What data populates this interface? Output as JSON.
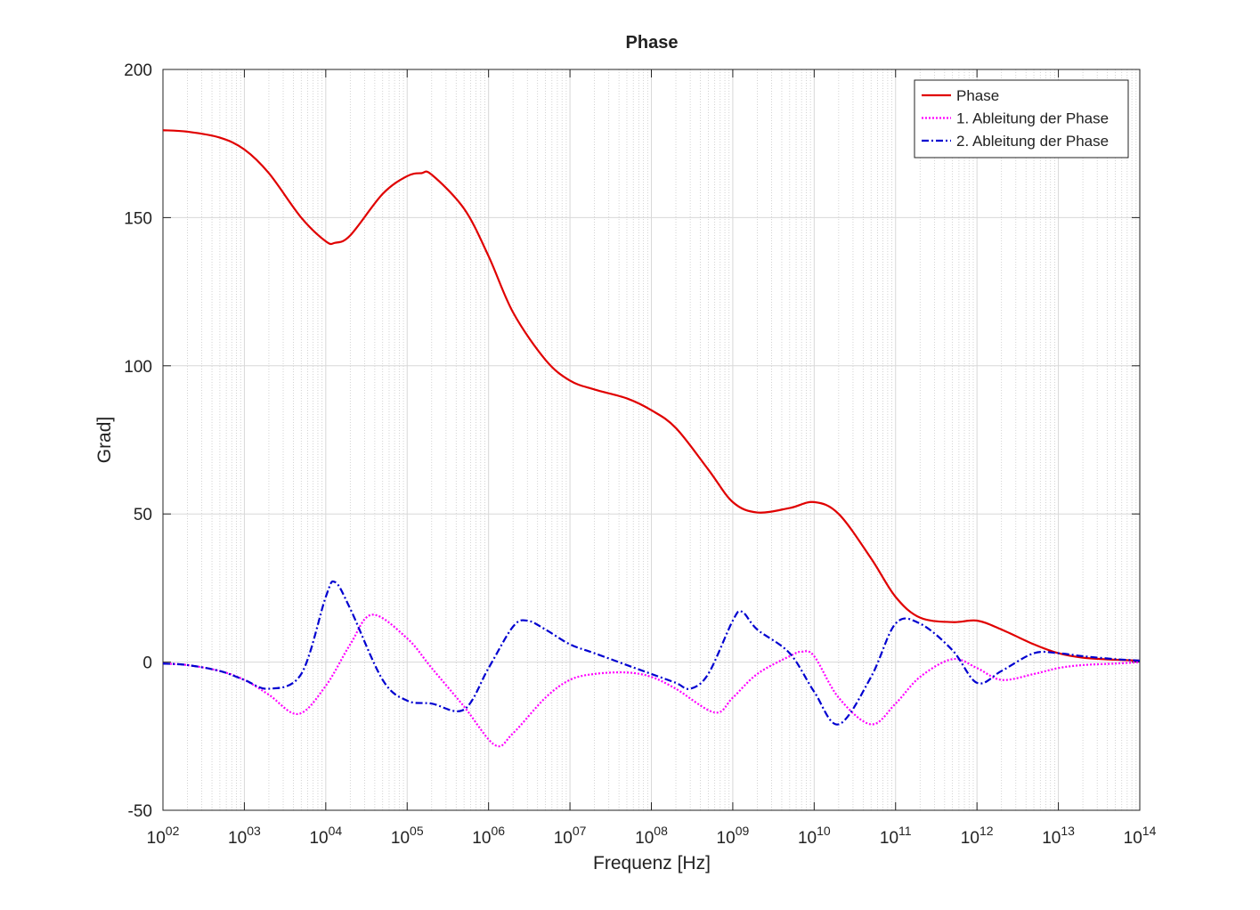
{
  "chart_data": {
    "type": "line",
    "title": "Phase",
    "xlabel": "Frequenz [Hz]",
    "ylabel": "Grad]",
    "xscale": "log",
    "xlim": [
      100,
      100000000000000
    ],
    "ylim": [
      -50,
      200
    ],
    "xticks": [
      {
        "value": 100,
        "label": "10^02"
      },
      {
        "value": 1000,
        "label": "10^03"
      },
      {
        "value": 10000,
        "label": "10^04"
      },
      {
        "value": 100000,
        "label": "10^05"
      },
      {
        "value": 1000000,
        "label": "10^06"
      },
      {
        "value": 10000000,
        "label": "10^07"
      },
      {
        "value": 100000000,
        "label": "10^08"
      },
      {
        "value": 1000000000,
        "label": "10^09"
      },
      {
        "value": 10000000000,
        "label": "10^10"
      },
      {
        "value": 100000000000,
        "label": "10^11"
      },
      {
        "value": 1000000000000,
        "label": "10^12"
      },
      {
        "value": 10000000000000,
        "label": "10^13"
      },
      {
        "value": 100000000000000,
        "label": "10^14"
      }
    ],
    "yticks": [
      -50,
      0,
      50,
      100,
      150,
      200
    ],
    "grid": true,
    "legend": "upper right",
    "series": [
      {
        "name": "Phase",
        "color": "#e00000",
        "linestyle": "solid",
        "x": [
          100,
          200,
          500,
          1000,
          2000,
          5000,
          10000,
          13000,
          20000,
          50000,
          100000,
          150000,
          200000,
          500000,
          1000000,
          2000000,
          5000000,
          10000000,
          20000000,
          50000000,
          100000000,
          200000000,
          500000000,
          1000000000,
          2000000000,
          5000000000,
          10000000000,
          20000000000,
          50000000000,
          100000000000,
          200000000000,
          500000000000,
          1000000000000,
          2000000000000,
          5000000000000,
          10000000000000,
          20000000000000,
          50000000000000,
          100000000000000
        ],
        "values": [
          179.5,
          179,
          177,
          173,
          165,
          150,
          142,
          141.5,
          144,
          158,
          164,
          165,
          164.5,
          153,
          137,
          118,
          102,
          95,
          92,
          89,
          85,
          79,
          65,
          54,
          50.5,
          52,
          54,
          50,
          35,
          22,
          15,
          13.5,
          14,
          11,
          6,
          3,
          1.5,
          0.8,
          0.5
        ]
      },
      {
        "name": "1. Ableitung der Phase",
        "color": "#ff00ff",
        "linestyle": "dotted",
        "x": [
          100,
          200,
          500,
          1000,
          2000,
          4600,
          10000,
          20000,
          37000,
          100000,
          200000,
          500000,
          1200000,
          2000000,
          5000000,
          10000000,
          20000000,
          50000000,
          100000000,
          200000000,
          600000000,
          1000000000,
          2000000000,
          5000000000,
          7000000000,
          10000000000,
          20000000000,
          50000000000,
          100000000000,
          200000000000,
          500000000000,
          1000000000000,
          2000000000000,
          5000000000000,
          10000000000000,
          20000000000000,
          50000000000000,
          100000000000000
        ],
        "values": [
          -0.5,
          -1,
          -3,
          -6,
          -11,
          -17.5,
          -8,
          6,
          16,
          8,
          -2,
          -15,
          -28,
          -24,
          -12,
          -6,
          -4,
          -3.5,
          -5,
          -9,
          -17,
          -12,
          -4,
          2,
          3.5,
          2,
          -12,
          -21,
          -14,
          -5,
          1,
          -2,
          -6,
          -4,
          -2,
          -1,
          -0.5,
          0
        ]
      },
      {
        "name": "2. Ableitung der Phase",
        "color": "#0000d0",
        "linestyle": "dashdot",
        "x": [
          100,
          200,
          500,
          1000,
          2000,
          5000,
          10000,
          13000,
          20000,
          50000,
          100000,
          200000,
          500000,
          1000000,
          2000000,
          3000000,
          5000000,
          10000000,
          20000000,
          50000000,
          100000000,
          200000000,
          300000000,
          500000000,
          1000000000,
          1300000000,
          2000000000,
          5000000000,
          10000000000,
          20000000000,
          50000000000,
          100000000000,
          200000000000,
          500000000000,
          1000000000000,
          2000000000000,
          5000000000000,
          10000000000000,
          20000000000000,
          50000000000000,
          100000000000000
        ],
        "values": [
          -0.5,
          -1,
          -3,
          -6,
          -9,
          -4,
          22,
          27,
          18,
          -6,
          -13,
          -14,
          -16,
          -2,
          12,
          14,
          11,
          6,
          3,
          -1,
          -4,
          -7,
          -9,
          -4,
          14,
          17,
          11,
          3,
          -10,
          -21,
          -5,
          13,
          13,
          4,
          -7,
          -3,
          3,
          3,
          2,
          1,
          0.5
        ]
      }
    ]
  }
}
